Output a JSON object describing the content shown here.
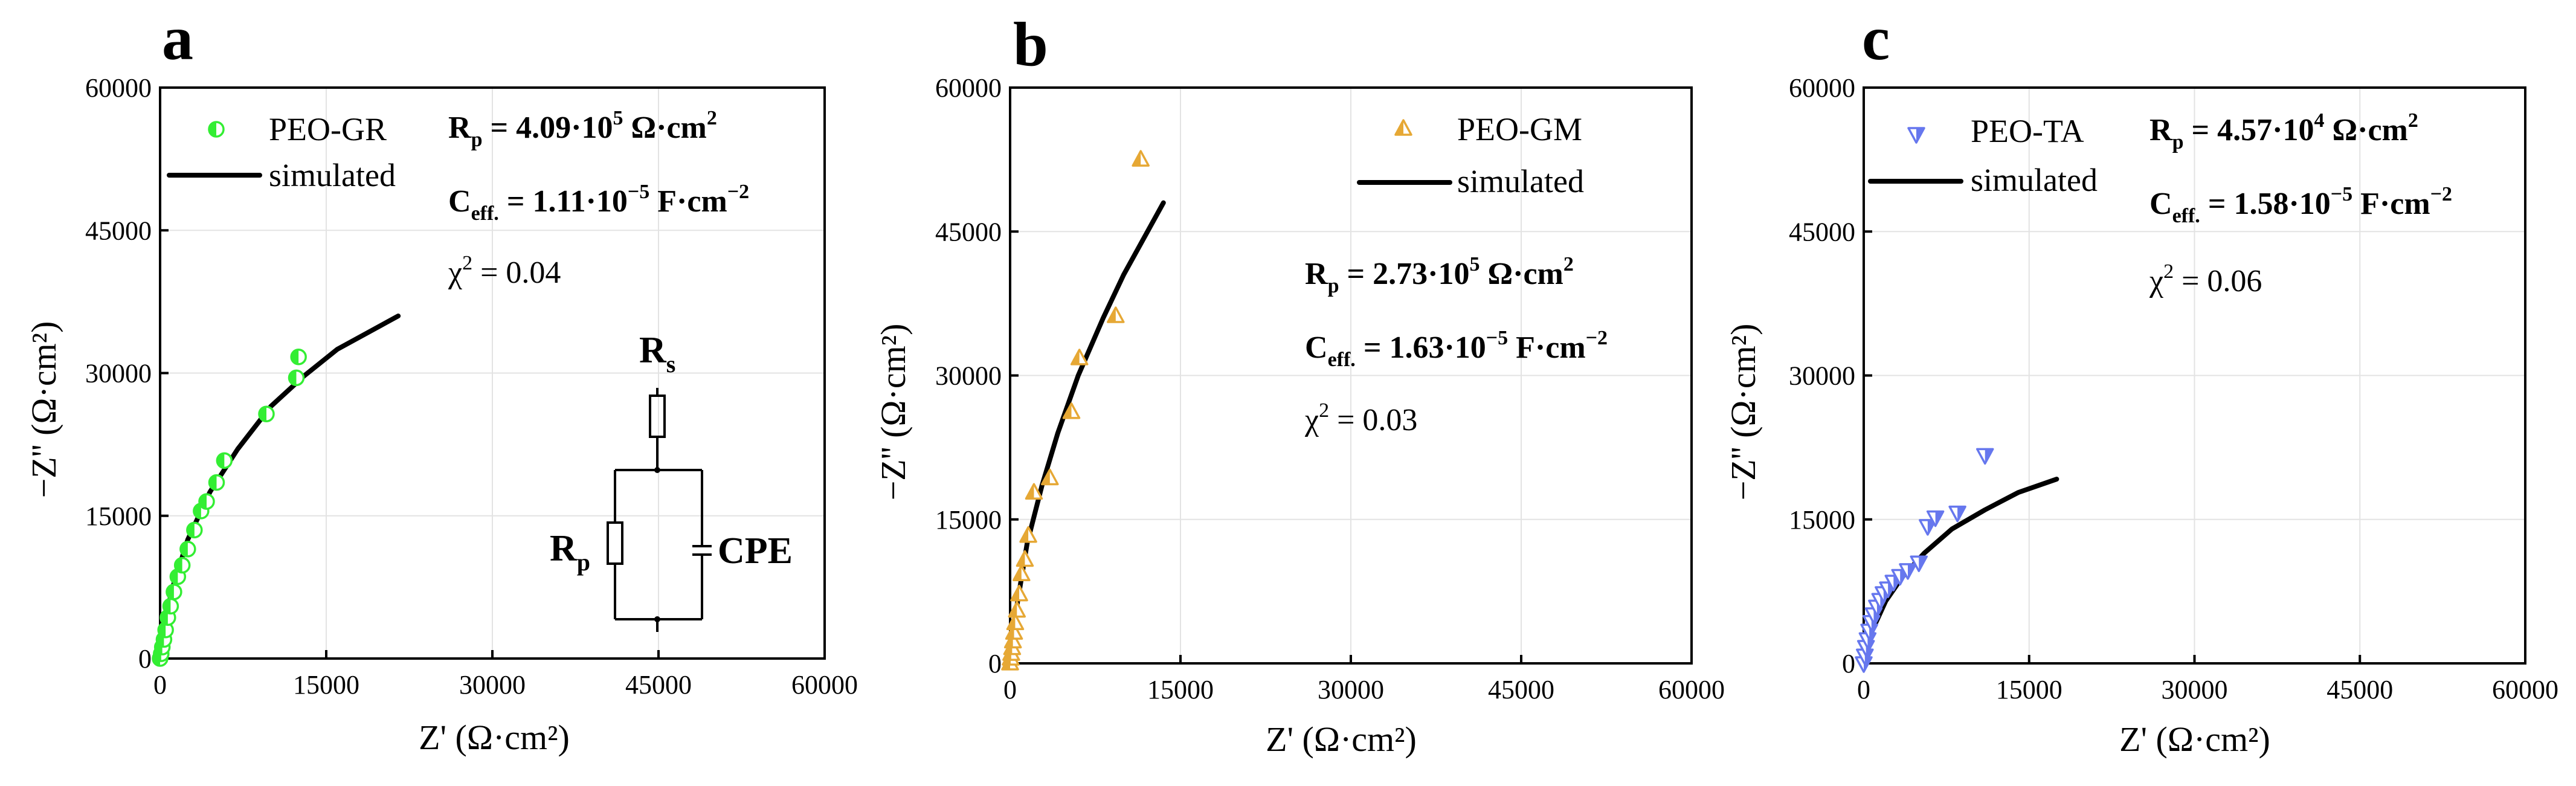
{
  "chart_data": [
    {
      "type": "scatter",
      "panel_label": "a",
      "xlabel": "Z' (Ω·cm²)",
      "ylabel": "−Z'' (Ω·cm²)",
      "xlim": [
        0,
        60000
      ],
      "ylim": [
        0,
        60000
      ],
      "ticks": [
        0,
        15000,
        30000,
        45000,
        60000
      ],
      "grid": true,
      "legend": {
        "position": "top-left",
        "entries": [
          "PEO-GR",
          "simulated"
        ]
      },
      "marker": "half-filled-circle",
      "color": "#33ee33",
      "series": [
        {
          "name": "PEO-GR",
          "x": [
            0,
            100,
            200,
            350,
            500,
            700,
            950,
            1250,
            1600,
            2000,
            2500,
            3100,
            3700,
            4200,
            5100,
            5800,
            9600,
            12300,
            12500
          ],
          "y": [
            0,
            500,
            1200,
            2000,
            3000,
            4300,
            5500,
            7000,
            8600,
            9800,
            11500,
            13500,
            15500,
            16500,
            18500,
            20800,
            25700,
            29500,
            31700
          ]
        },
        {
          "name": "simulated",
          "x": [
            0,
            1000,
            2500,
            4500,
            7000,
            10000,
            13000,
            16000,
            21500
          ],
          "y": [
            0,
            7000,
            12500,
            17500,
            22000,
            26500,
            29700,
            32500,
            36000
          ]
        }
      ],
      "annotations": {
        "rp_prefix": "R",
        "rp_sub": "p",
        "rp_value": " = 4.09·10",
        "rp_exp": "5",
        "rp_unit": " Ω·cm",
        "rp_unit_exp": "2",
        "ceff_prefix": "C",
        "ceff_sub": "eff.",
        "ceff_value": " = 1.11·10",
        "ceff_exp": "−5",
        "ceff_unit": " F·cm",
        "ceff_unit_exp": "−2",
        "chi_prefix": "χ",
        "chi_exp": "2",
        "chi_value": " = 0.04"
      },
      "circuit": {
        "rs_prefix": "R",
        "rs_sub": "s",
        "rp_prefix": "R",
        "rp_sub": "p",
        "cpe_label": "CPE"
      }
    },
    {
      "type": "scatter",
      "panel_label": "b",
      "xlabel": "Z' (Ω·cm²)",
      "ylabel": "−Z'' (Ω·cm²)",
      "xlim": [
        0,
        60000
      ],
      "ylim": [
        0,
        60000
      ],
      "ticks": [
        0,
        15000,
        30000,
        45000,
        60000
      ],
      "grid": true,
      "legend": {
        "position": "top-right",
        "entries": [
          "PEO-GM",
          "simulated"
        ]
      },
      "marker": "half-filled-triangle-up",
      "color": "#e6a835",
      "series": [
        {
          "name": "PEO-GM",
          "x": [
            0,
            50,
            100,
            180,
            250,
            350,
            450,
            600,
            800,
            1000,
            1300,
            1600,
            2100,
            3500,
            5400,
            6100,
            9300,
            11500
          ],
          "y": [
            0,
            500,
            1000,
            1600,
            2300,
            3200,
            4200,
            5500,
            7200,
            9300,
            10800,
            13300,
            17800,
            19300,
            26200,
            31800,
            36200,
            52500
          ]
        },
        {
          "name": "simulated",
          "x": [
            0,
            600,
            1500,
            2800,
            4200,
            6000,
            8200,
            10000,
            13500
          ],
          "y": [
            0,
            6000,
            12500,
            18500,
            24000,
            30000,
            36000,
            40500,
            48000
          ]
        }
      ],
      "annotations": {
        "rp_prefix": "R",
        "rp_sub": "p",
        "rp_value": " = 2.73·10",
        "rp_exp": "5",
        "rp_unit": " Ω·cm",
        "rp_unit_exp": "2",
        "ceff_prefix": "C",
        "ceff_sub": "eff.",
        "ceff_value": " = 1.63·10",
        "ceff_exp": "−5",
        "ceff_unit": " F·cm",
        "ceff_unit_exp": "−2",
        "chi_prefix": "χ",
        "chi_exp": "2",
        "chi_value": " = 0.03"
      }
    },
    {
      "type": "scatter",
      "panel_label": "c",
      "xlabel": "Z' (Ω·cm²)",
      "ylabel": "−Z'' (Ω·cm²)",
      "xlim": [
        0,
        60000
      ],
      "ylim": [
        0,
        60000
      ],
      "ticks": [
        0,
        15000,
        30000,
        45000,
        60000
      ],
      "grid": true,
      "legend": {
        "position": "top-left",
        "entries": [
          "PEO-TA",
          "simulated"
        ]
      },
      "marker": "half-filled-triangle-down",
      "color": "#6677ee",
      "series": [
        {
          "name": "PEO-TA",
          "x": [
            0,
            100,
            200,
            350,
            500,
            700,
            900,
            1200,
            1500,
            1800,
            2200,
            2700,
            3300,
            4000,
            5000,
            5800,
            6500,
            8500,
            11000
          ],
          "y": [
            0,
            800,
            1700,
            2500,
            3400,
            4300,
            5100,
            5900,
            6600,
            7300,
            7800,
            8500,
            9100,
            9700,
            10500,
            14300,
            15200,
            15700,
            21700
          ]
        },
        {
          "name": "simulated",
          "x": [
            0,
            800,
            2000,
            3500,
            5500,
            8000,
            11000,
            14000,
            17500
          ],
          "y": [
            0,
            3500,
            6500,
            9000,
            11500,
            14000,
            16000,
            17800,
            19200
          ]
        }
      ],
      "annotations": {
        "rp_prefix": "R",
        "rp_sub": "p",
        "rp_value": " = 4.57·10",
        "rp_exp": "4",
        "rp_unit": " Ω·cm",
        "rp_unit_exp": "2",
        "ceff_prefix": "C",
        "ceff_sub": "eff.",
        "ceff_value": " = 1.58·10",
        "ceff_exp": "−5",
        "ceff_unit": " F·cm",
        "ceff_unit_exp": "−2",
        "chi_prefix": "χ",
        "chi_exp": "2",
        "chi_value": " = 0.06"
      }
    }
  ]
}
